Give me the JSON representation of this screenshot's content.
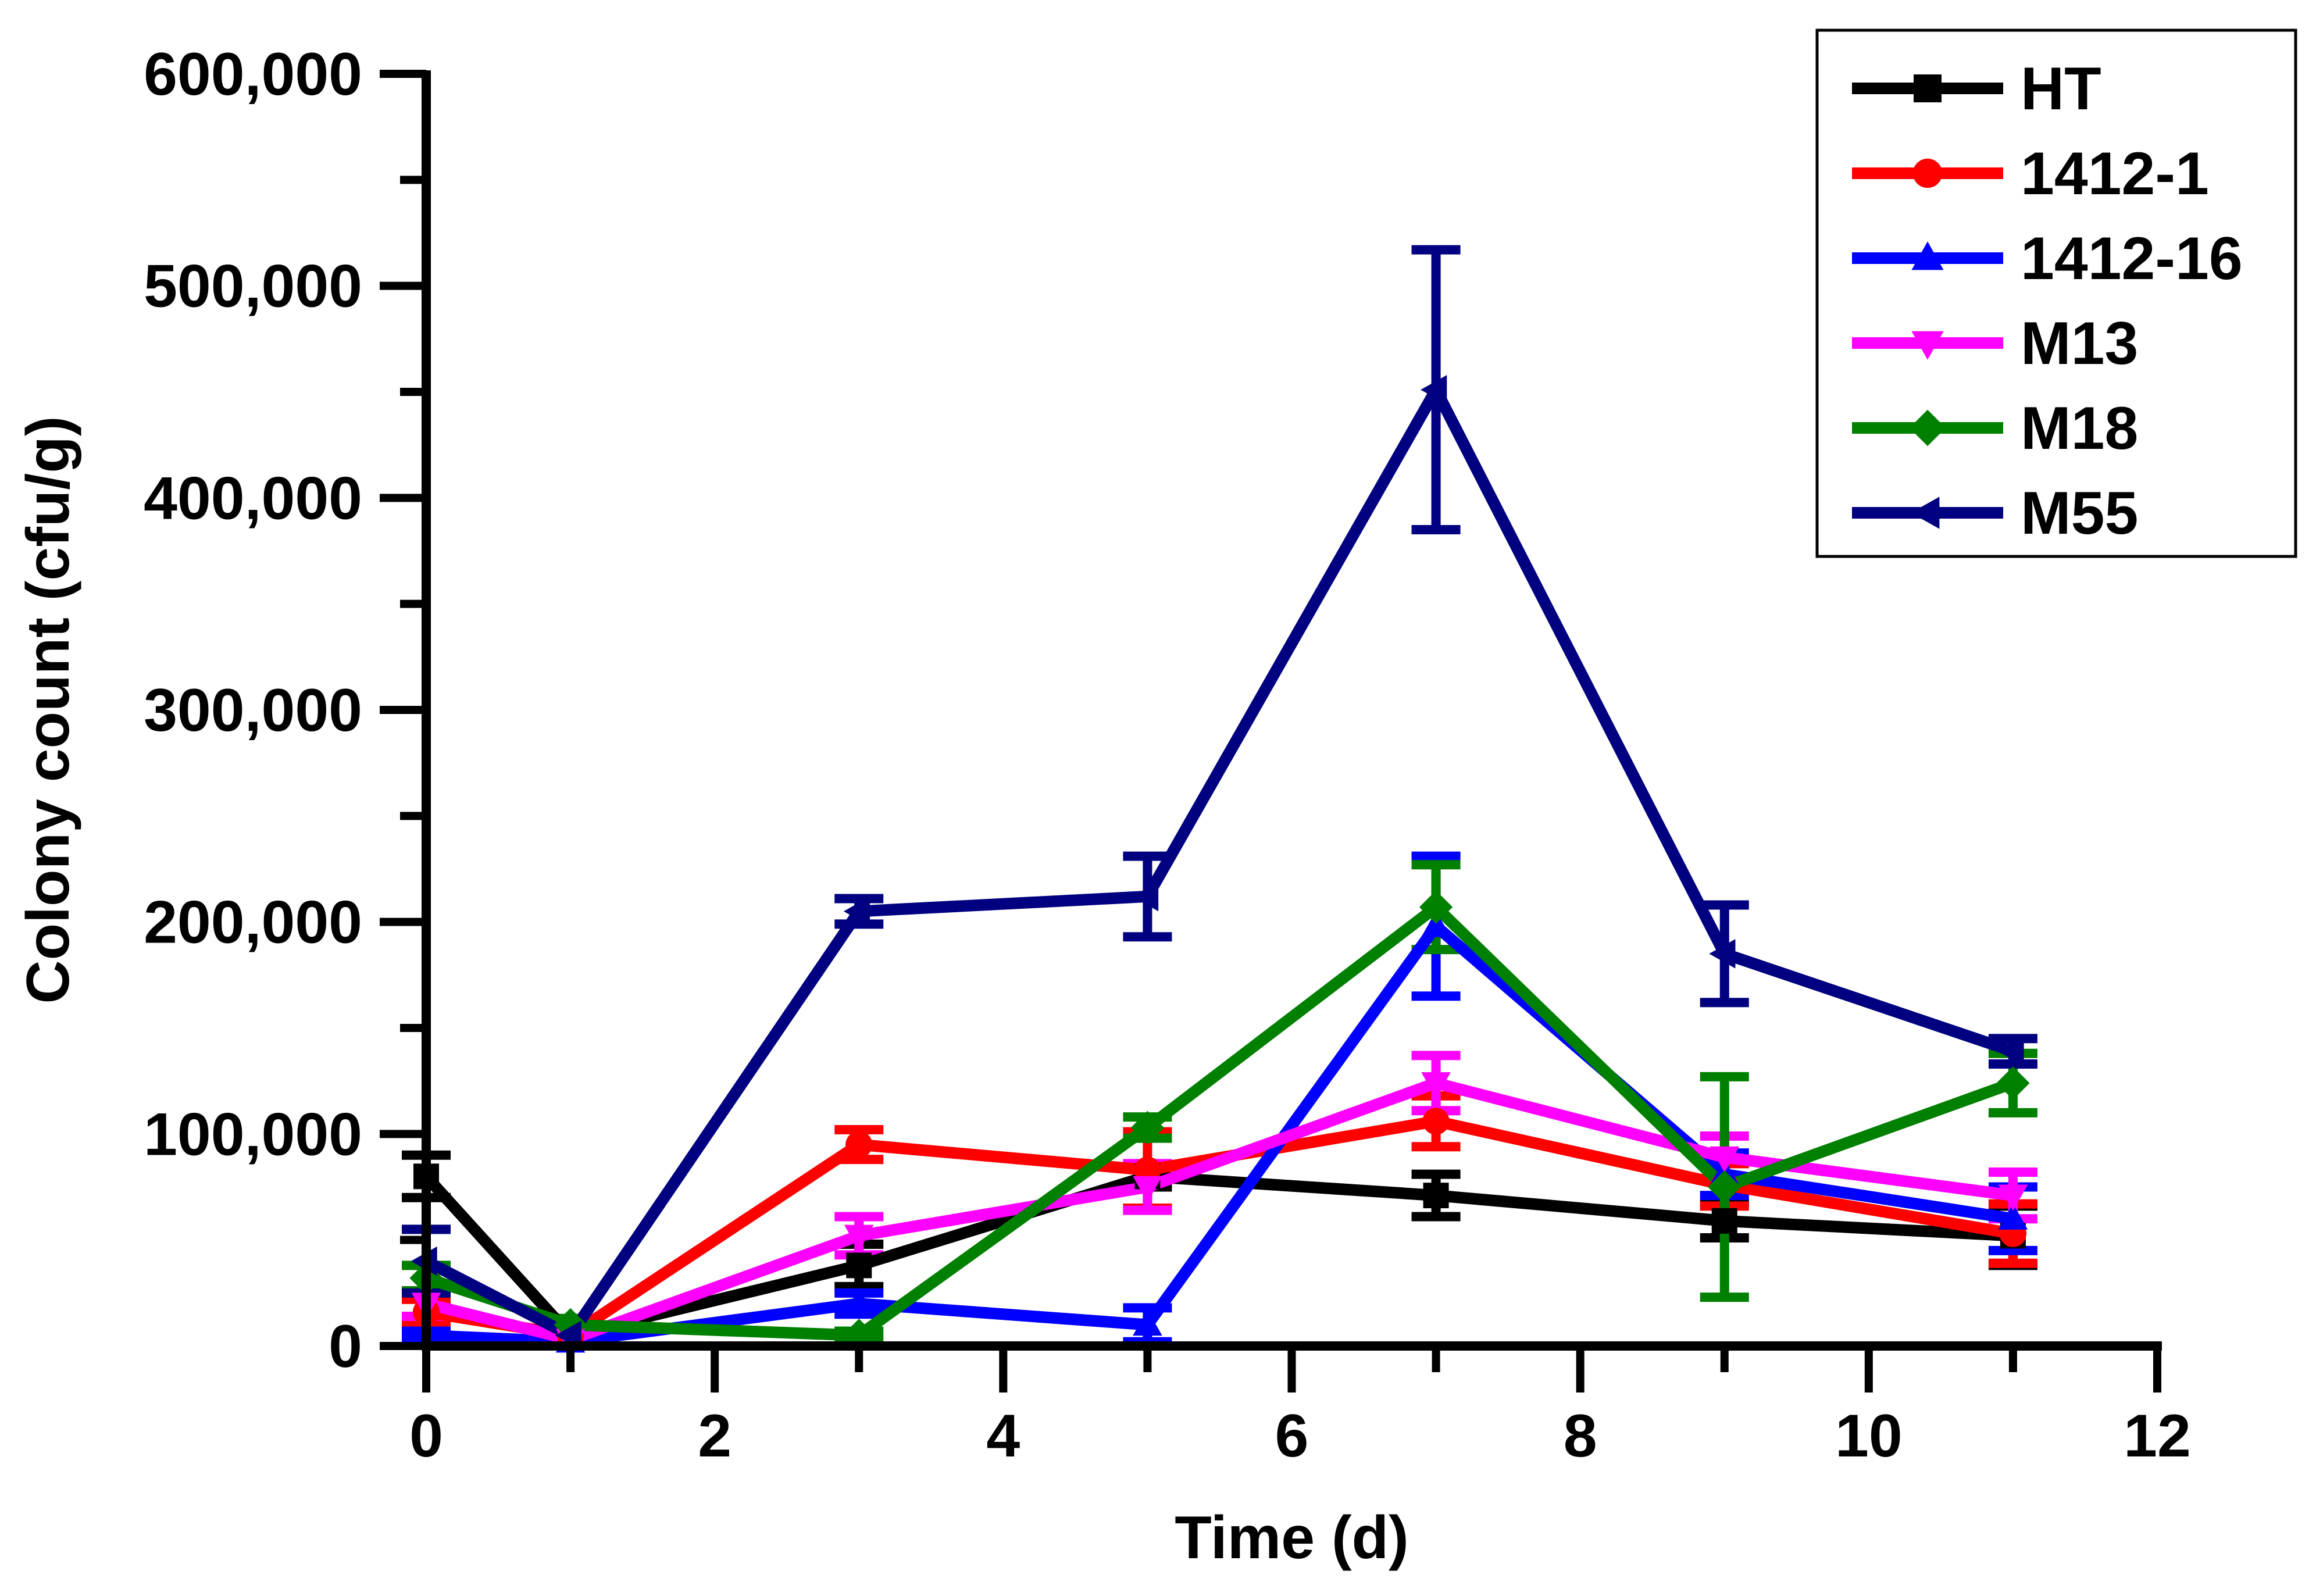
{
  "chart_data": {
    "type": "line",
    "title": "",
    "xlabel": "Time (d)",
    "ylabel": "Colony count (cfu/g)",
    "xlim": [
      0,
      12
    ],
    "ylim": [
      0,
      600000
    ],
    "xticks": [
      0,
      2,
      4,
      6,
      8,
      10,
      12
    ],
    "xtick_labels": [
      "0",
      "2",
      "4",
      "6",
      "8",
      "10",
      "12"
    ],
    "yticks": [
      0,
      100000,
      200000,
      300000,
      400000,
      500000,
      600000
    ],
    "ytick_labels": [
      "0",
      "100,000",
      "200,000",
      "300,000",
      "400,000",
      "500,000",
      "600,000"
    ],
    "legend_position": "top-right",
    "grid": false,
    "x": [
      0,
      1,
      3,
      5,
      7,
      9,
      11
    ],
    "series": [
      {
        "name": "HT",
        "color": "#000000",
        "marker": "square",
        "values": [
          80000,
          5000,
          38000,
          80000,
          71000,
          59000,
          52000
        ],
        "errors": [
          10000,
          2000,
          10000,
          5000,
          10000,
          8000,
          14000
        ]
      },
      {
        "name": "1412-1",
        "color": "#ff0000",
        "marker": "circle",
        "values": [
          16000,
          5000,
          95000,
          83000,
          106000,
          76000,
          53000
        ],
        "errors": [
          6000,
          2000,
          7000,
          18000,
          12000,
          10000,
          14000
        ]
      },
      {
        "name": "1412-16",
        "color": "#0000ff",
        "marker": "triangle-up",
        "values": [
          5000,
          2000,
          20000,
          10000,
          198000,
          81000,
          60000
        ],
        "errors": [
          2000,
          1000,
          5000,
          8000,
          33000,
          10000,
          15000
        ]
      },
      {
        "name": "M13",
        "color": "#ff00ff",
        "marker": "triangle-down",
        "values": [
          20000,
          3000,
          52000,
          75000,
          124000,
          89000,
          71000
        ],
        "errors": [
          6000,
          1000,
          9000,
          11000,
          13000,
          10000,
          11000
        ]
      },
      {
        "name": "M18",
        "color": "#008000",
        "marker": "diamond",
        "values": [
          32000,
          10000,
          5000,
          103000,
          207000,
          75000,
          124000
        ],
        "errors": [
          6000,
          3000,
          2000,
          5000,
          20000,
          52000,
          14000
        ]
      },
      {
        "name": "M55",
        "color": "#000080",
        "marker": "triangle-left",
        "values": [
          40000,
          5000,
          205000,
          212000,
          451000,
          185000,
          139000
        ],
        "errors": [
          15000,
          3000,
          6000,
          19000,
          66000,
          23000,
          6000
        ]
      }
    ]
  }
}
